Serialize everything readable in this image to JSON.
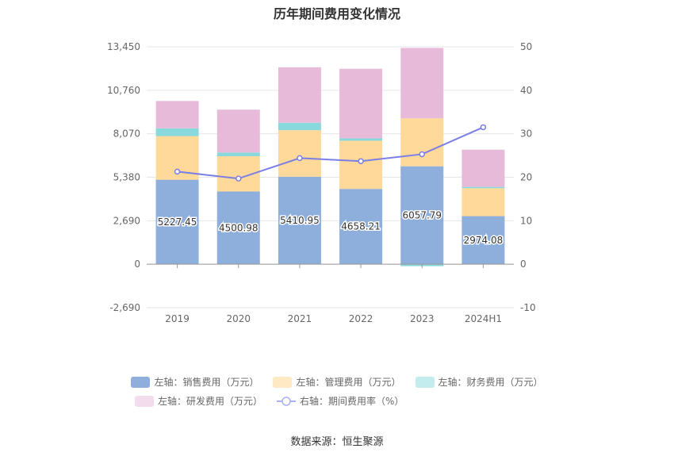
{
  "title": "历年期间费用变化情况",
  "source_text": "数据来源：恒生聚源",
  "chart_data": {
    "type": "bar",
    "stacked": true,
    "categories": [
      "2019",
      "2020",
      "2021",
      "2022",
      "2023",
      "2024H1"
    ],
    "left_axis": {
      "ticks": [
        -2690,
        0,
        2690,
        5380,
        8070,
        10760,
        13450
      ],
      "tick_labels": [
        "-2,690",
        "0",
        "2,690",
        "5,380",
        "8,070",
        "10,760",
        "13,450"
      ],
      "ylim": [
        -2690,
        13450
      ]
    },
    "right_axis": {
      "ticks": [
        -10,
        0,
        10,
        20,
        30,
        40,
        50
      ],
      "tick_labels": [
        "-10",
        "0",
        "10",
        "20",
        "30",
        "40",
        "50"
      ],
      "ylim": [
        -10,
        50
      ]
    },
    "series": [
      {
        "name": "左轴：销售费用（万元）",
        "axis": "left",
        "kind": "bar",
        "color": "#8eaedc",
        "values": [
          5227.45,
          4500.98,
          5410.95,
          4658.21,
          6057.79,
          2974.08
        ],
        "show_labels": true
      },
      {
        "name": "左轴：管理费用（万元）",
        "axis": "left",
        "kind": "bar",
        "color": "#ffd99a",
        "values": [
          2700,
          2180,
          2880,
          2980,
          2970,
          1730
        ],
        "show_labels": false
      },
      {
        "name": "左轴：财务费用（万元）",
        "axis": "left",
        "kind": "bar",
        "color": "#88d8dc",
        "values": [
          480,
          230,
          460,
          150,
          -120,
          80
        ],
        "show_labels": false
      },
      {
        "name": "左轴：研发费用（万元）",
        "axis": "left",
        "kind": "bar",
        "color": "#e8bada",
        "values": [
          1690,
          2650,
          3430,
          4300,
          4350,
          2300
        ],
        "show_labels": false
      },
      {
        "name": "右轴：期间费用率（%）",
        "axis": "right",
        "kind": "line",
        "color": "#7b7ee6",
        "values": [
          21.3,
          19.7,
          24.4,
          23.7,
          25.3,
          31.5
        ],
        "show_labels": false
      }
    ],
    "legend_position": "bottom",
    "grid": true
  }
}
